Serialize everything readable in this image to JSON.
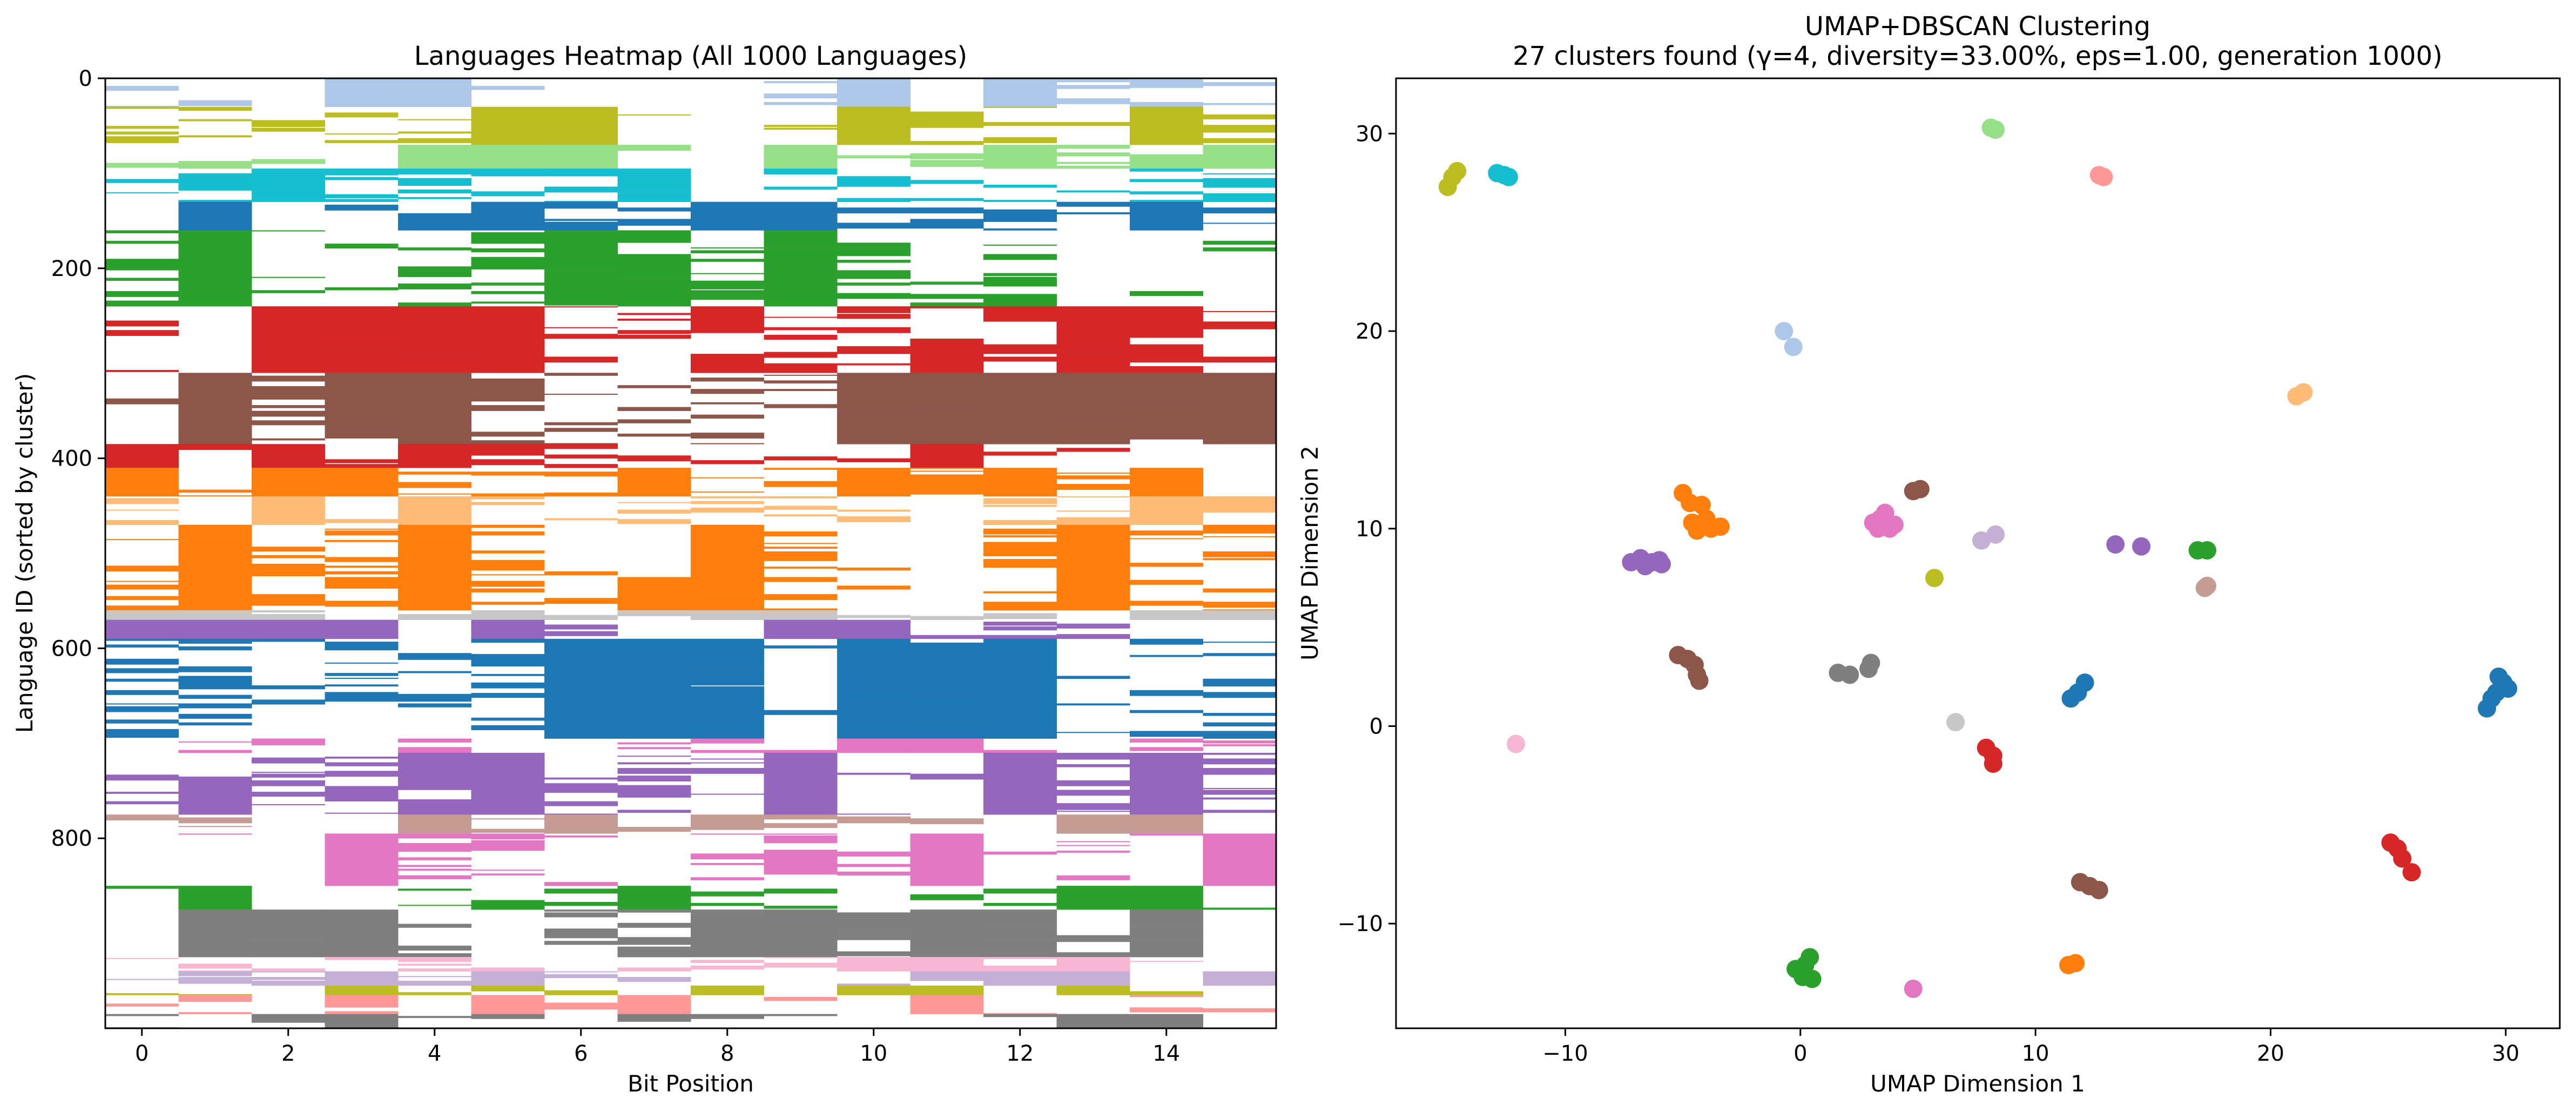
{
  "chart_data": [
    {
      "type": "heatmap",
      "title": "Languages Heatmap (All 1000 Languages)",
      "xlabel": "Bit Position",
      "ylabel": "Language ID (sorted by cluster)",
      "xlim": [
        -0.5,
        15.5
      ],
      "ylim": [
        1000,
        0
      ],
      "x_ticks": [
        0,
        2,
        4,
        6,
        8,
        10,
        12,
        14
      ],
      "y_ticks": [
        0,
        200,
        400,
        600,
        800
      ],
      "n_rows": 1000,
      "n_columns": 16,
      "background": "#ffffff",
      "cluster_bands": [
        {
          "start": 0,
          "end": 30,
          "color": "#aec7e8"
        },
        {
          "start": 30,
          "end": 70,
          "color": "#bcbd22"
        },
        {
          "start": 70,
          "end": 95,
          "color": "#98df8a"
        },
        {
          "start": 95,
          "end": 130,
          "color": "#17becf"
        },
        {
          "start": 130,
          "end": 160,
          "color": "#1f77b4"
        },
        {
          "start": 160,
          "end": 240,
          "color": "#2ca02c"
        },
        {
          "start": 240,
          "end": 310,
          "color": "#d62728"
        },
        {
          "start": 310,
          "end": 385,
          "color": "#8c564b"
        },
        {
          "start": 385,
          "end": 410,
          "color": "#d62728"
        },
        {
          "start": 410,
          "end": 440,
          "color": "#ff7f0e"
        },
        {
          "start": 440,
          "end": 470,
          "color": "#ffbb78"
        },
        {
          "start": 470,
          "end": 560,
          "color": "#ff7f0e"
        },
        {
          "start": 560,
          "end": 570,
          "color": "#c7c7c7"
        },
        {
          "start": 570,
          "end": 590,
          "color": "#9467bd"
        },
        {
          "start": 590,
          "end": 695,
          "color": "#1f77b4"
        },
        {
          "start": 695,
          "end": 710,
          "color": "#e377c2"
        },
        {
          "start": 710,
          "end": 775,
          "color": "#9467bd"
        },
        {
          "start": 775,
          "end": 795,
          "color": "#c49c94"
        },
        {
          "start": 795,
          "end": 850,
          "color": "#e377c2"
        },
        {
          "start": 850,
          "end": 875,
          "color": "#2ca02c"
        },
        {
          "start": 875,
          "end": 925,
          "color": "#7f7f7f"
        },
        {
          "start": 925,
          "end": 940,
          "color": "#f7b6d2"
        },
        {
          "start": 940,
          "end": 955,
          "color": "#c5b0d5"
        },
        {
          "start": 955,
          "end": 965,
          "color": "#bcbd22"
        },
        {
          "start": 965,
          "end": 985,
          "color": "#ff9896"
        },
        {
          "start": 985,
          "end": 1000,
          "color": "#7f7f7f"
        }
      ]
    },
    {
      "type": "scatter",
      "title": "UMAP+DBSCAN Clustering",
      "subtitle": "27 clusters found (γ=4, diversity=33.00%, eps=1.00, generation 1000)",
      "xlabel": "UMAP Dimension 1",
      "ylabel": "UMAP Dimension 2",
      "xlim": [
        -17.2,
        32.3
      ],
      "ylim": [
        -15.3,
        32.8
      ],
      "x_ticks": [
        -10,
        0,
        10,
        20,
        30
      ],
      "y_ticks": [
        -10,
        0,
        10,
        20,
        30
      ],
      "series": [
        {
          "color": "#bcbd22",
          "points": [
            [
              -15.0,
              27.3
            ],
            [
              -14.8,
              27.8
            ],
            [
              -14.6,
              28.1
            ]
          ]
        },
        {
          "color": "#17becf",
          "points": [
            [
              -12.9,
              28.0
            ],
            [
              -12.6,
              27.9
            ],
            [
              -12.4,
              27.8
            ]
          ]
        },
        {
          "color": "#98df8a",
          "points": [
            [
              8.1,
              30.3
            ],
            [
              8.3,
              30.2
            ]
          ]
        },
        {
          "color": "#ff9896",
          "points": [
            [
              12.7,
              27.9
            ],
            [
              12.9,
              27.8
            ]
          ]
        },
        {
          "color": "#aec7e8",
          "points": [
            [
              -0.7,
              20.0
            ],
            [
              -0.3,
              19.2
            ]
          ]
        },
        {
          "color": "#ffbb78",
          "points": [
            [
              21.1,
              16.7
            ],
            [
              21.4,
              16.9
            ]
          ]
        },
        {
          "color": "#ff7f0e",
          "points": [
            [
              -5.0,
              11.8
            ],
            [
              -4.7,
              11.3
            ],
            [
              -4.2,
              11.2
            ],
            [
              -4.6,
              10.3
            ],
            [
              -4.4,
              9.9
            ],
            [
              -3.8,
              10.0
            ],
            [
              -3.4,
              10.1
            ],
            [
              -4.0,
              10.5
            ]
          ]
        },
        {
          "color": "#9467bd",
          "points": [
            [
              -7.2,
              8.3
            ],
            [
              -6.8,
              8.5
            ],
            [
              -6.3,
              8.3
            ],
            [
              -6.0,
              8.4
            ],
            [
              -6.6,
              8.1
            ],
            [
              -5.9,
              8.2
            ]
          ]
        },
        {
          "color": "#e377c2",
          "points": [
            [
              3.1,
              10.3
            ],
            [
              3.3,
              10.0
            ],
            [
              3.6,
              10.8
            ],
            [
              3.4,
              10.5
            ],
            [
              4.0,
              10.2
            ],
            [
              3.8,
              10.0
            ]
          ]
        },
        {
          "color": "#8c564b",
          "points": [
            [
              4.8,
              11.9
            ],
            [
              5.1,
              12.0
            ]
          ]
        },
        {
          "color": "#c5b0d5",
          "points": [
            [
              7.7,
              9.4
            ],
            [
              8.3,
              9.7
            ]
          ]
        },
        {
          "color": "#9467bd",
          "points": [
            [
              13.4,
              9.2
            ],
            [
              14.5,
              9.1
            ]
          ]
        },
        {
          "color": "#2ca02c",
          "points": [
            [
              16.9,
              8.9
            ],
            [
              17.3,
              8.9
            ]
          ]
        },
        {
          "color": "#c49c94",
          "points": [
            [
              17.2,
              7.0
            ],
            [
              17.3,
              7.1
            ]
          ]
        },
        {
          "color": "#bcbd22",
          "points": [
            [
              5.7,
              7.5
            ]
          ]
        },
        {
          "color": "#8c564b",
          "points": [
            [
              -5.2,
              3.6
            ],
            [
              -4.8,
              3.4
            ],
            [
              -4.5,
              3.1
            ],
            [
              -4.4,
              2.6
            ],
            [
              -4.3,
              2.3
            ]
          ]
        },
        {
          "color": "#7f7f7f",
          "points": [
            [
              1.6,
              2.7
            ],
            [
              2.1,
              2.6
            ],
            [
              2.9,
              2.9
            ],
            [
              3.0,
              3.2
            ]
          ]
        },
        {
          "color": "#c7c7c7",
          "points": [
            [
              6.6,
              0.2
            ]
          ]
        },
        {
          "color": "#1f77b4",
          "points": [
            [
              11.5,
              1.4
            ],
            [
              11.8,
              1.7
            ],
            [
              12.1,
              2.2
            ]
          ]
        },
        {
          "color": "#1f77b4",
          "points": [
            [
              29.2,
              0.9
            ],
            [
              29.4,
              1.4
            ],
            [
              29.7,
              2.5
            ],
            [
              29.9,
              2.2
            ],
            [
              30.1,
              1.9
            ],
            [
              29.6,
              1.7
            ]
          ]
        },
        {
          "color": "#f7b6d2",
          "points": [
            [
              -12.1,
              -0.9
            ]
          ]
        },
        {
          "color": "#d62728",
          "points": [
            [
              7.9,
              -1.1
            ],
            [
              8.2,
              -1.5
            ],
            [
              8.2,
              -1.9
            ]
          ]
        },
        {
          "color": "#d62728",
          "points": [
            [
              25.1,
              -5.9
            ],
            [
              25.4,
              -6.2
            ],
            [
              25.6,
              -6.7
            ],
            [
              26.0,
              -7.4
            ]
          ]
        },
        {
          "color": "#8c564b",
          "points": [
            [
              11.9,
              -7.9
            ],
            [
              12.3,
              -8.1
            ],
            [
              12.7,
              -8.3
            ]
          ]
        },
        {
          "color": "#ff7f0e",
          "points": [
            [
              11.4,
              -12.1
            ],
            [
              11.7,
              -12.0
            ]
          ]
        },
        {
          "color": "#2ca02c",
          "points": [
            [
              -0.2,
              -12.3
            ],
            [
              0.1,
              -12.7
            ],
            [
              0.5,
              -12.8
            ],
            [
              0.4,
              -11.7
            ],
            [
              0.2,
              -12.1
            ]
          ]
        },
        {
          "color": "#e377c2",
          "points": [
            [
              4.8,
              -13.3
            ]
          ]
        }
      ]
    }
  ]
}
